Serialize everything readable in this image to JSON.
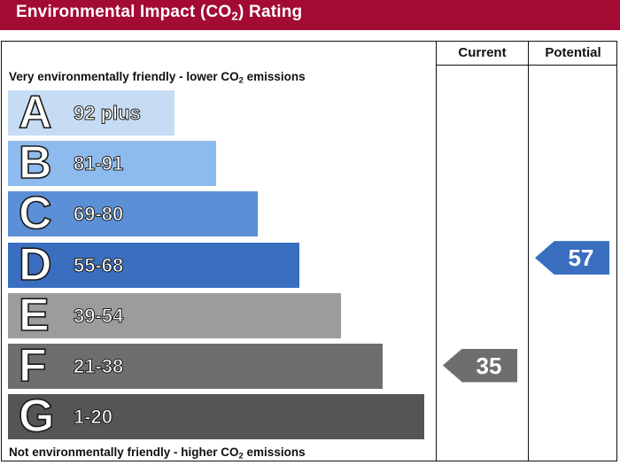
{
  "header": {
    "title_pre": "Environmental Impact (CO",
    "title_sub": "2",
    "title_post": ") Rating"
  },
  "columns": {
    "current": "Current",
    "potential": "Potential"
  },
  "captions": {
    "top_pre": "Very environmentally friendly - lower CO",
    "top_sub": "2",
    "top_post": " emissions",
    "bottom_pre": "Not environmentally friendly - higher CO",
    "bottom_sub": "2",
    "bottom_post": " emissions"
  },
  "colors": {
    "header": "#a30b35",
    "arrow_current": "#6e6e6e",
    "arrow_potential": "#3a6fc0"
  },
  "chart_data": {
    "type": "bar",
    "bands": [
      {
        "letter": "A",
        "range": "92 plus",
        "color": "#c6dcf5"
      },
      {
        "letter": "B",
        "range": "81-91",
        "color": "#8dbbee"
      },
      {
        "letter": "C",
        "range": "69-80",
        "color": "#5b8fd6"
      },
      {
        "letter": "D",
        "range": "55-68",
        "color": "#3a6fc0"
      },
      {
        "letter": "E",
        "range": "39-54",
        "color": "#9c9c9c"
      },
      {
        "letter": "F",
        "range": "21-38",
        "color": "#6e6e6e"
      },
      {
        "letter": "G",
        "range": "1-20",
        "color": "#555558"
      }
    ],
    "current": {
      "value": "35",
      "band": "F"
    },
    "potential": {
      "value": "57",
      "band": "D"
    }
  }
}
